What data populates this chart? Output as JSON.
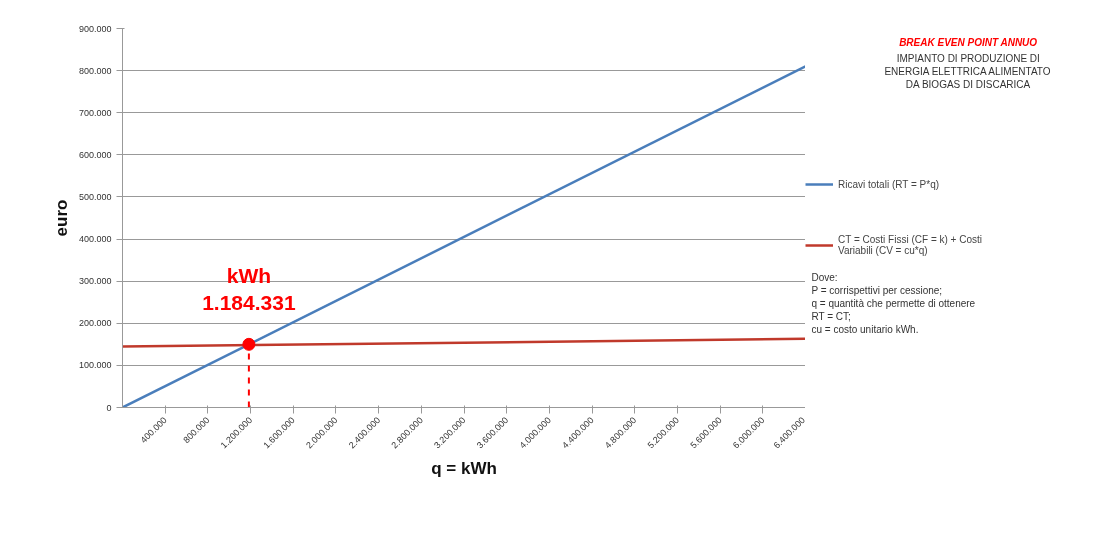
{
  "chart_data": {
    "type": "line",
    "title": "BREAK EVEN POINT ANNUO",
    "subtitle": "IMPIANTO DI PRODUZIONE DI\nENERGIA ELETTRICA ALIMENTATO\nDA BIOGAS DI DISCARICA",
    "xlabel": "q = kWh",
    "ylabel": "euro",
    "x": [
      0,
      6400000
    ],
    "series": [
      {
        "name": "Ricavi totali (RT = P*q)",
        "color": "#4a7ebb",
        "values": [
          0,
          810000
        ]
      },
      {
        "name": "CT = Costi Fissi (CF = k) + Costi\nVariabili (CV = cu*q)",
        "color": "#c0392b",
        "values": [
          145000,
          163000
        ]
      },
      {
        "type": "scatter",
        "marker": "circle",
        "color": "#ff0000",
        "x": [
          1184331
        ],
        "values": [
          150000
        ]
      }
    ],
    "ref_lines": [
      {
        "axis": "x",
        "value": 1184331,
        "color": "#ff0000",
        "line_style": "dashed"
      }
    ],
    "annotations": [
      {
        "text": "kWh\n1.184.331",
        "x": 1184331,
        "y": 150000
      },
      "Dove:\nP = corrispettivi  per cessione;\nq = quantità che permette di ottenere\n      RT = CT;\ncu = costo unitario kWh."
    ],
    "xlim": [
      0,
      6400000
    ],
    "ylim": [
      0,
      900000
    ],
    "xticks": [
      {
        "value": 400000,
        "label": "400.000"
      },
      {
        "value": 800000,
        "label": "800.000"
      },
      {
        "value": 1200000,
        "label": "1.200.000"
      },
      {
        "value": 1600000,
        "label": "1.600.000"
      },
      {
        "value": 2000000,
        "label": "2.000.000"
      },
      {
        "value": 2400000,
        "label": "2.400.000"
      },
      {
        "value": 2800000,
        "label": "2.800.000"
      },
      {
        "value": 3200000,
        "label": "3.200.000"
      },
      {
        "value": 3600000,
        "label": "3.600.000"
      },
      {
        "value": 4000000,
        "label": "4.000.000"
      },
      {
        "value": 4400000,
        "label": "4.400.000"
      },
      {
        "value": 4800000,
        "label": "4.800.000"
      },
      {
        "value": 5200000,
        "label": "5.200.000"
      },
      {
        "value": 5600000,
        "label": "5.600.000"
      },
      {
        "value": 6000000,
        "label": "6.000.000"
      },
      {
        "value": 6400000,
        "label": "6.400.000"
      }
    ],
    "yticks": [
      0,
      {
        "value": 100000,
        "label": "100.000"
      },
      {
        "value": 200000,
        "label": "200.000"
      },
      {
        "value": 300000,
        "label": "300.000"
      },
      {
        "value": 400000,
        "label": "400.000"
      },
      {
        "value": 500000,
        "label": "500.000"
      },
      {
        "value": 600000,
        "label": "600.000"
      },
      {
        "value": 700000,
        "label": "700.000"
      },
      {
        "value": 800000,
        "label": "800.000"
      },
      {
        "value": 900000,
        "label": "900.000"
      }
    ],
    "grid": "y",
    "legend": "right",
    "marker": "none",
    "line_style": "solid"
  }
}
